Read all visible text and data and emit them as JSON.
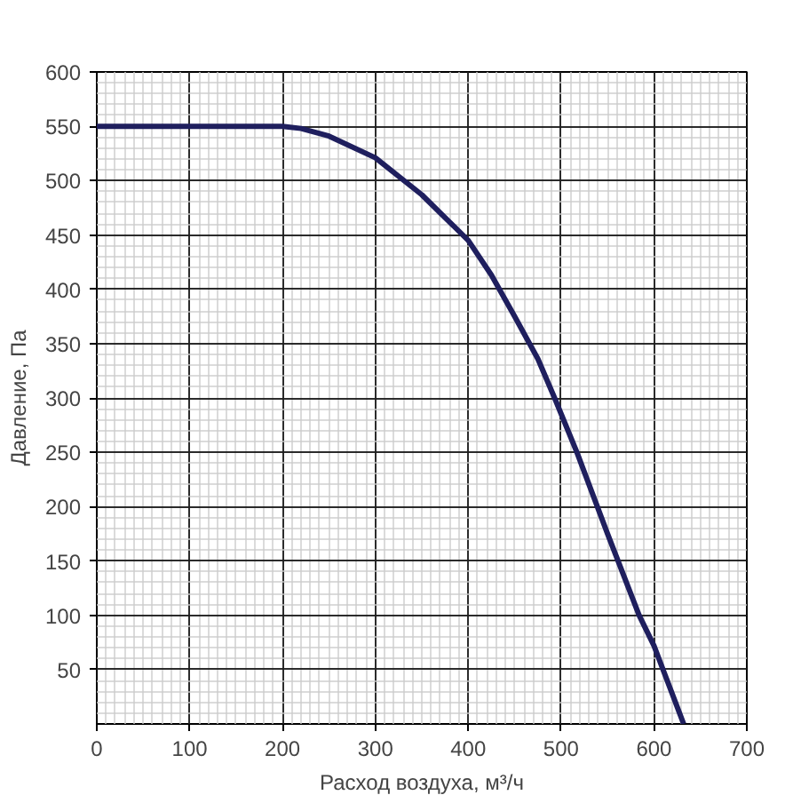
{
  "chart_data": {
    "type": "line",
    "xlabel": "Расход воздуха, м³/ч",
    "ylabel": "Давление, Па",
    "series": [
      {
        "color": "#1f1f5e",
        "x": [
          0,
          200,
          220,
          250,
          300,
          350,
          400,
          425,
          450,
          475,
          493,
          517,
          550,
          584,
          600,
          632
        ],
        "values": [
          550,
          550,
          548,
          541,
          521,
          487,
          445,
          413,
          375,
          336,
          300,
          250,
          175,
          100,
          72,
          0
        ]
      }
    ],
    "xlim": [
      0,
      700
    ],
    "ylim": [
      0,
      600
    ],
    "xticks": [
      0,
      100,
      200,
      300,
      400,
      500,
      600,
      700
    ],
    "yticks": [
      50,
      100,
      150,
      200,
      250,
      300,
      350,
      400,
      450,
      500,
      550,
      600
    ],
    "grid": true,
    "marker": "none",
    "line_style": "solid"
  }
}
